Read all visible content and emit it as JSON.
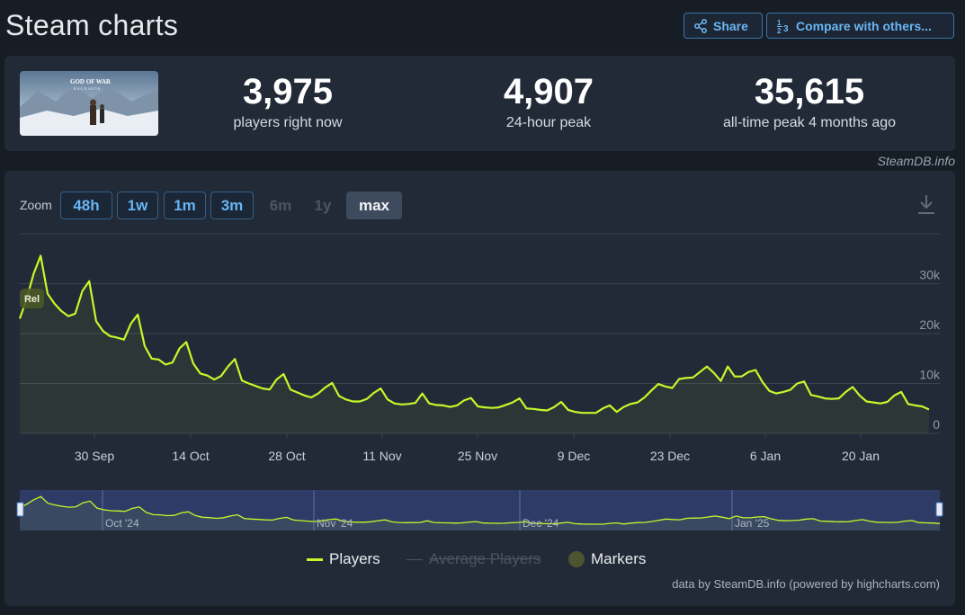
{
  "page": {
    "title": "Steam charts"
  },
  "toolbar": {
    "share_label": "Share",
    "compare_label": "Compare with others..."
  },
  "stats": [
    {
      "value": "3,975",
      "label": "players right now"
    },
    {
      "value": "4,907",
      "label": "24-hour peak"
    },
    {
      "value": "35,615",
      "label": "all-time peak 4 months ago"
    }
  ],
  "game_thumbnail": {
    "title_text": "GOD OF WAR",
    "subtitle_text": "RAGNARÖK"
  },
  "credit_top": "SteamDB.info",
  "zoom": {
    "label": "Zoom",
    "buttons": [
      {
        "label": "48h",
        "state": "active"
      },
      {
        "label": "1w",
        "state": "active"
      },
      {
        "label": "1m",
        "state": "active"
      },
      {
        "label": "3m",
        "state": "active"
      },
      {
        "label": "6m",
        "state": "disabled"
      },
      {
        "label": "1y",
        "state": "disabled"
      },
      {
        "label": "max",
        "state": "selected"
      }
    ]
  },
  "legend": {
    "players": "Players",
    "average": "Average Players",
    "markers": "Markers"
  },
  "credit_bottom": "data by SteamDB.info (powered by highcharts.com)",
  "chart_data": {
    "type": "line",
    "series": [
      {
        "name": "Players",
        "color": "#c5f82a",
        "values": [
          23000,
          27000,
          32000,
          35600,
          28000,
          26000,
          24500,
          23500,
          24000,
          28500,
          30500,
          22500,
          20500,
          19500,
          19200,
          18800,
          22000,
          23800,
          17500,
          15000,
          14800,
          13800,
          14200,
          17000,
          18300,
          14000,
          12000,
          11600,
          10800,
          11500,
          13400,
          14900,
          10600,
          10000,
          9500,
          9000,
          8800,
          10800,
          11900,
          8800,
          8200,
          7600,
          7200,
          8000,
          9200,
          10100,
          7500,
          6800,
          6400,
          6400,
          6900,
          8100,
          9000,
          6800,
          6000,
          5800,
          5900,
          6100,
          8000,
          6000,
          5700,
          5600,
          5300,
          5600,
          6600,
          7100,
          5400,
          5200,
          5100,
          5200,
          5700,
          6200,
          7000,
          5000,
          4900,
          4700,
          4600,
          5300,
          6300,
          4700,
          4300,
          4100,
          4100,
          4100,
          5000,
          5600,
          4300,
          5300,
          5900,
          6200,
          7200,
          8600,
          9900,
          9400,
          9100,
          10900,
          11100,
          11200,
          12300,
          13400,
          12100,
          10500,
          13400,
          11400,
          11400,
          12300,
          12700,
          10300,
          8500,
          8000,
          8300,
          8700,
          10000,
          10400,
          7700,
          7400,
          7000,
          6900,
          7000,
          8300,
          9300,
          7600,
          6400,
          6200,
          6000,
          6300,
          7600,
          8300,
          5900,
          5600,
          5400,
          4800
        ]
      },
      {
        "name": "Average Players",
        "color": "#4b5564",
        "hidden": true
      }
    ],
    "x_labels": [
      "30 Sep",
      "14 Oct",
      "28 Oct",
      "11 Nov",
      "25 Nov",
      "9 Dec",
      "23 Dec",
      "6 Jan",
      "20 Jan"
    ],
    "y_labels": [
      "0",
      "10k",
      "20k",
      "30k"
    ],
    "ylim": [
      0,
      40000
    ],
    "grid": true,
    "markers": [
      {
        "label": "Rel"
      }
    ],
    "navigator_labels": [
      "Oct '24",
      "Nov '24",
      "Dec '24",
      "Jan '25"
    ],
    "legend_placement": "bottom-center"
  }
}
